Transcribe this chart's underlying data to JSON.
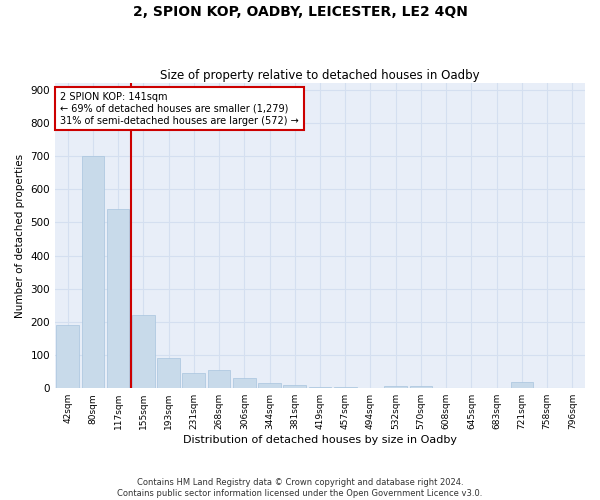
{
  "title": "2, SPION KOP, OADBY, LEICESTER, LE2 4QN",
  "subtitle": "Size of property relative to detached houses in Oadby",
  "xlabel": "Distribution of detached houses by size in Oadby",
  "ylabel": "Number of detached properties",
  "bar_color": "#c8daea",
  "bar_edge_color": "#a8c4de",
  "grid_color": "#d4dff0",
  "bg_color": "#e8eef8",
  "vline_color": "#cc0000",
  "annotation_title": "2 SPION KOP: 141sqm",
  "annotation_line1": "← 69% of detached houses are smaller (1,279)",
  "annotation_line2": "31% of semi-detached houses are larger (572) →",
  "annotation_box_color": "#cc0000",
  "categories": [
    "42sqm",
    "80sqm",
    "117sqm",
    "155sqm",
    "193sqm",
    "231sqm",
    "268sqm",
    "306sqm",
    "344sqm",
    "381sqm",
    "419sqm",
    "457sqm",
    "494sqm",
    "532sqm",
    "570sqm",
    "608sqm",
    "645sqm",
    "683sqm",
    "721sqm",
    "758sqm",
    "796sqm"
  ],
  "values": [
    190,
    700,
    540,
    220,
    90,
    45,
    55,
    30,
    15,
    10,
    5,
    3,
    2,
    8,
    8,
    0,
    0,
    0,
    20,
    0,
    0
  ],
  "ylim": [
    0,
    920
  ],
  "yticks": [
    0,
    100,
    200,
    300,
    400,
    500,
    600,
    700,
    800,
    900
  ],
  "footnote1": "Contains HM Land Registry data © Crown copyright and database right 2024.",
  "footnote2": "Contains public sector information licensed under the Open Government Licence v3.0."
}
